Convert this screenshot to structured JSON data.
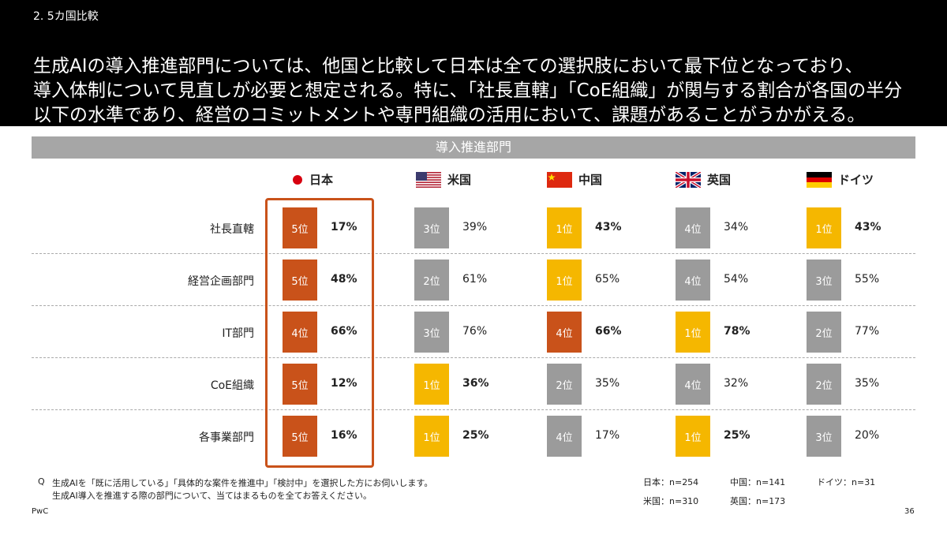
{
  "header": {
    "section": "2. 5カ国比較",
    "lead": [
      "生成AIの導入推進部門については、他国と比較して日本は全ての選択肢において最下位となっており、",
      "導入体制について見直しが必要と想定される。特に、「社長直轄」「CoE組織」が関与する割合が各国の半分",
      "以下の水準であり、経営のコミットメントや専門組織の活用において、課題があることがうかがえる。"
    ]
  },
  "table": {
    "title": "導入推進部門",
    "countries": [
      "日本",
      "米国",
      "中国",
      "英国",
      "ドイツ"
    ],
    "rows": [
      {
        "label": "社長直轄",
        "cells": [
          {
            "rank": "5位",
            "value": "17%",
            "color": "#c9521a",
            "bold": true
          },
          {
            "rank": "3位",
            "value": "39%",
            "color": "#9b9b9b",
            "bold": false
          },
          {
            "rank": "1位",
            "value": "43%",
            "color": "#f5b700",
            "bold": true
          },
          {
            "rank": "4位",
            "value": "34%",
            "color": "#9b9b9b",
            "bold": false
          },
          {
            "rank": "1位",
            "value": "43%",
            "color": "#f5b700",
            "bold": true
          }
        ]
      },
      {
        "label": "経営企画部門",
        "cells": [
          {
            "rank": "5位",
            "value": "48%",
            "color": "#c9521a",
            "bold": true
          },
          {
            "rank": "2位",
            "value": "61%",
            "color": "#9b9b9b",
            "bold": false
          },
          {
            "rank": "1位",
            "value": "65%",
            "color": "#f5b700",
            "bold": false
          },
          {
            "rank": "4位",
            "value": "54%",
            "color": "#9b9b9b",
            "bold": false
          },
          {
            "rank": "3位",
            "value": "55%",
            "color": "#9b9b9b",
            "bold": false
          }
        ]
      },
      {
        "label": "IT部門",
        "cells": [
          {
            "rank": "4位",
            "value": "66%",
            "color": "#c9521a",
            "bold": true
          },
          {
            "rank": "3位",
            "value": "76%",
            "color": "#9b9b9b",
            "bold": false
          },
          {
            "rank": "4位",
            "value": "66%",
            "color": "#c9521a",
            "bold": true
          },
          {
            "rank": "1位",
            "value": "78%",
            "color": "#f5b700",
            "bold": true
          },
          {
            "rank": "2位",
            "value": "77%",
            "color": "#9b9b9b",
            "bold": false
          }
        ]
      },
      {
        "label": "CoE組織",
        "cells": [
          {
            "rank": "5位",
            "value": "12%",
            "color": "#c9521a",
            "bold": true
          },
          {
            "rank": "1位",
            "value": "36%",
            "color": "#f5b700",
            "bold": true
          },
          {
            "rank": "2位",
            "value": "35%",
            "color": "#9b9b9b",
            "bold": false
          },
          {
            "rank": "4位",
            "value": "32%",
            "color": "#9b9b9b",
            "bold": false
          },
          {
            "rank": "2位",
            "value": "35%",
            "color": "#9b9b9b",
            "bold": false
          }
        ]
      },
      {
        "label": "各事業部門",
        "cells": [
          {
            "rank": "5位",
            "value": "16%",
            "color": "#c9521a",
            "bold": true
          },
          {
            "rank": "1位",
            "value": "25%",
            "color": "#f5b700",
            "bold": true
          },
          {
            "rank": "4位",
            "value": "17%",
            "color": "#9b9b9b",
            "bold": false
          },
          {
            "rank": "1位",
            "value": "25%",
            "color": "#f5b700",
            "bold": true
          },
          {
            "rank": "3位",
            "value": "20%",
            "color": "#9b9b9b",
            "bold": false
          }
        ]
      }
    ]
  },
  "footnote": {
    "marker": "Q",
    "lines": [
      "生成AIを「既に活用している」「具体的な案件を推進中」「検討中」を選択した方にお伺いします。",
      "生成AI導入を推進する際の部門について、当てはまるものを全てお答えください。"
    ]
  },
  "samples": [
    "日本：n=254",
    "中国：n=141",
    "ドイツ：n=31",
    "米国：n=310",
    "英国：n=173"
  ],
  "footer": {
    "brand": "PwC",
    "page": "36"
  }
}
